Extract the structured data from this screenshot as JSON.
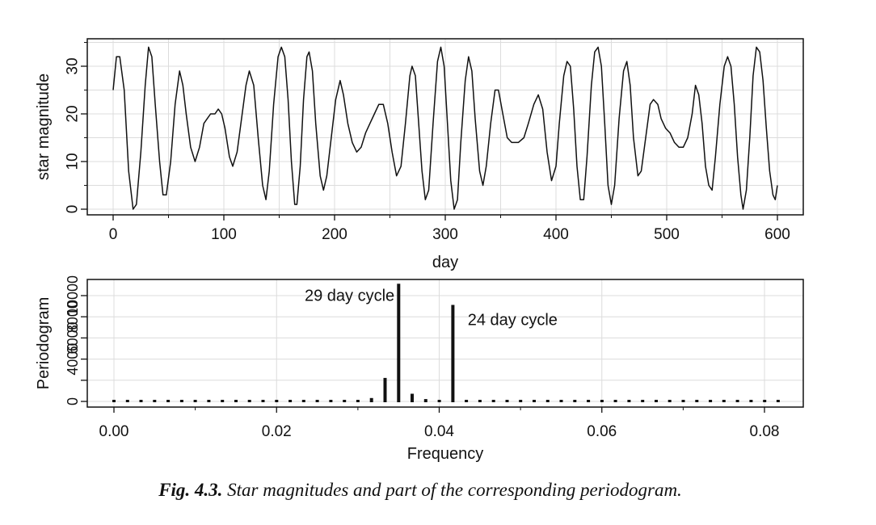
{
  "caption": {
    "lead": "Fig. 4.3.",
    "text": " Star magnitudes and part of the corresponding periodogram."
  },
  "chart_data": [
    {
      "type": "line",
      "xlabel": "day",
      "ylabel": "star magnitude",
      "xlim": [
        0,
        600
      ],
      "ylim": [
        0,
        35
      ],
      "grid": true,
      "x_ticks": [
        "0",
        "100",
        "200",
        "300",
        "400",
        "500",
        "600"
      ],
      "y_ticks": [
        "0",
        "10",
        "20",
        "30"
      ],
      "series": [
        {
          "points": [
            [
              0,
              25
            ],
            [
              3,
              32
            ],
            [
              6,
              32
            ],
            [
              10,
              25
            ],
            [
              14,
              8
            ],
            [
              18,
              0
            ],
            [
              21,
              1
            ],
            [
              25,
              12
            ],
            [
              29,
              26
            ],
            [
              32,
              34
            ],
            [
              35,
              32
            ],
            [
              38,
              22
            ],
            [
              42,
              10
            ],
            [
              45,
              3
            ],
            [
              48,
              3
            ],
            [
              52,
              10
            ],
            [
              56,
              22
            ],
            [
              60,
              29
            ],
            [
              63,
              26
            ],
            [
              66,
              20
            ],
            [
              70,
              13
            ],
            [
              74,
              10
            ],
            [
              78,
              13
            ],
            [
              82,
              18
            ],
            [
              85,
              19
            ],
            [
              88,
              20
            ],
            [
              92,
              20
            ],
            [
              95,
              21
            ],
            [
              98,
              20
            ],
            [
              101,
              17
            ],
            [
              105,
              11
            ],
            [
              108,
              9
            ],
            [
              112,
              12
            ],
            [
              116,
              19
            ],
            [
              120,
              26
            ],
            [
              123,
              29
            ],
            [
              127,
              26
            ],
            [
              131,
              15
            ],
            [
              135,
              5
            ],
            [
              138,
              2
            ],
            [
              141,
              8
            ],
            [
              145,
              22
            ],
            [
              149,
              32
            ],
            [
              152,
              34
            ],
            [
              155,
              32
            ],
            [
              158,
              23
            ],
            [
              161,
              10
            ],
            [
              164,
              1
            ],
            [
              166,
              1
            ],
            [
              169,
              9
            ],
            [
              172,
              23
            ],
            [
              175,
              32
            ],
            [
              177,
              33
            ],
            [
              180,
              29
            ],
            [
              183,
              18
            ],
            [
              187,
              7
            ],
            [
              190,
              4
            ],
            [
              193,
              7
            ],
            [
              197,
              15
            ],
            [
              201,
              23
            ],
            [
              205,
              27
            ],
            [
              208,
              24
            ],
            [
              212,
              18
            ],
            [
              216,
              14
            ],
            [
              220,
              12
            ],
            [
              224,
              13
            ],
            [
              228,
              16
            ],
            [
              232,
              18
            ],
            [
              236,
              20
            ],
            [
              240,
              22
            ],
            [
              244,
              22
            ],
            [
              248,
              18
            ],
            [
              252,
              12
            ],
            [
              256,
              7
            ],
            [
              260,
              9
            ],
            [
              264,
              18
            ],
            [
              268,
              28
            ],
            [
              270,
              30
            ],
            [
              273,
              28
            ],
            [
              276,
              18
            ],
            [
              279,
              8
            ],
            [
              282,
              2
            ],
            [
              285,
              4
            ],
            [
              289,
              18
            ],
            [
              293,
              31
            ],
            [
              296,
              34
            ],
            [
              299,
              30
            ],
            [
              302,
              18
            ],
            [
              305,
              6
            ],
            [
              308,
              0
            ],
            [
              311,
              2
            ],
            [
              314,
              14
            ],
            [
              318,
              27
            ],
            [
              321,
              32
            ],
            [
              324,
              29
            ],
            [
              327,
              19
            ],
            [
              331,
              8
            ],
            [
              334,
              5
            ],
            [
              337,
              9
            ],
            [
              341,
              18
            ],
            [
              345,
              25
            ],
            [
              348,
              25
            ],
            [
              352,
              20
            ],
            [
              356,
              15
            ],
            [
              360,
              14
            ],
            [
              366,
              14
            ],
            [
              371,
              15
            ],
            [
              375,
              18
            ],
            [
              380,
              22
            ],
            [
              384,
              24
            ],
            [
              388,
              21
            ],
            [
              392,
              12
            ],
            [
              396,
              6
            ],
            [
              400,
              9
            ],
            [
              403,
              18
            ],
            [
              407,
              28
            ],
            [
              410,
              31
            ],
            [
              413,
              30
            ],
            [
              416,
              21
            ],
            [
              419,
              9
            ],
            [
              422,
              2
            ],
            [
              425,
              2
            ],
            [
              428,
              11
            ],
            [
              432,
              26
            ],
            [
              435,
              33
            ],
            [
              438,
              34
            ],
            [
              441,
              30
            ],
            [
              444,
              18
            ],
            [
              447,
              5
            ],
            [
              450,
              1
            ],
            [
              453,
              5
            ],
            [
              457,
              19
            ],
            [
              461,
              29
            ],
            [
              464,
              31
            ],
            [
              467,
              26
            ],
            [
              470,
              15
            ],
            [
              474,
              7
            ],
            [
              477,
              8
            ],
            [
              481,
              15
            ],
            [
              485,
              22
            ],
            [
              488,
              23
            ],
            [
              492,
              22
            ],
            [
              495,
              19
            ],
            [
              499,
              17
            ],
            [
              503,
              16
            ],
            [
              507,
              14
            ],
            [
              511,
              13
            ],
            [
              515,
              13
            ],
            [
              519,
              15
            ],
            [
              523,
              20
            ],
            [
              526,
              26
            ],
            [
              529,
              24
            ],
            [
              532,
              18
            ],
            [
              535,
              9
            ],
            [
              538,
              5
            ],
            [
              541,
              4
            ],
            [
              544,
              11
            ],
            [
              548,
              22
            ],
            [
              552,
              30
            ],
            [
              555,
              32
            ],
            [
              558,
              30
            ],
            [
              561,
              22
            ],
            [
              564,
              11
            ],
            [
              567,
              3
            ],
            [
              569,
              0
            ],
            [
              572,
              4
            ],
            [
              575,
              15
            ],
            [
              578,
              28
            ],
            [
              581,
              34
            ],
            [
              584,
              33
            ],
            [
              587,
              27
            ],
            [
              590,
              17
            ],
            [
              593,
              8
            ],
            [
              596,
              3
            ],
            [
              598,
              2
            ],
            [
              600,
              5
            ]
          ]
        }
      ]
    },
    {
      "type": "bar",
      "xlabel": "Frequency",
      "ylabel": "Periodogram",
      "xlim": [
        0,
        0.082
      ],
      "ylim": [
        0,
        11500
      ],
      "grid": true,
      "x_ticks": [
        "0.00",
        "0.02",
        "0.04",
        "0.06",
        "0.08"
      ],
      "y_ticks": [
        "0",
        "4000",
        "6000",
        "8000",
        "10000"
      ],
      "frequency_step": 0.001667,
      "values": [
        20,
        20,
        20,
        20,
        20,
        20,
        20,
        20,
        20,
        20,
        20,
        20,
        20,
        20,
        20,
        20,
        20,
        20,
        60,
        400,
        2300,
        11200,
        800,
        300,
        150,
        9200,
        20,
        20,
        20,
        20,
        20,
        20,
        20,
        20,
        20,
        20,
        20,
        20,
        20,
        20,
        20,
        20,
        20,
        20,
        20,
        20,
        20,
        20,
        20,
        20
      ],
      "annotations": [
        {
          "text": "29 day cycle",
          "x": 0.0345,
          "y": 9500,
          "anchor": "end"
        },
        {
          "text": "24 day cycle",
          "x": 0.0435,
          "y": 7200,
          "anchor": "start"
        }
      ]
    }
  ]
}
